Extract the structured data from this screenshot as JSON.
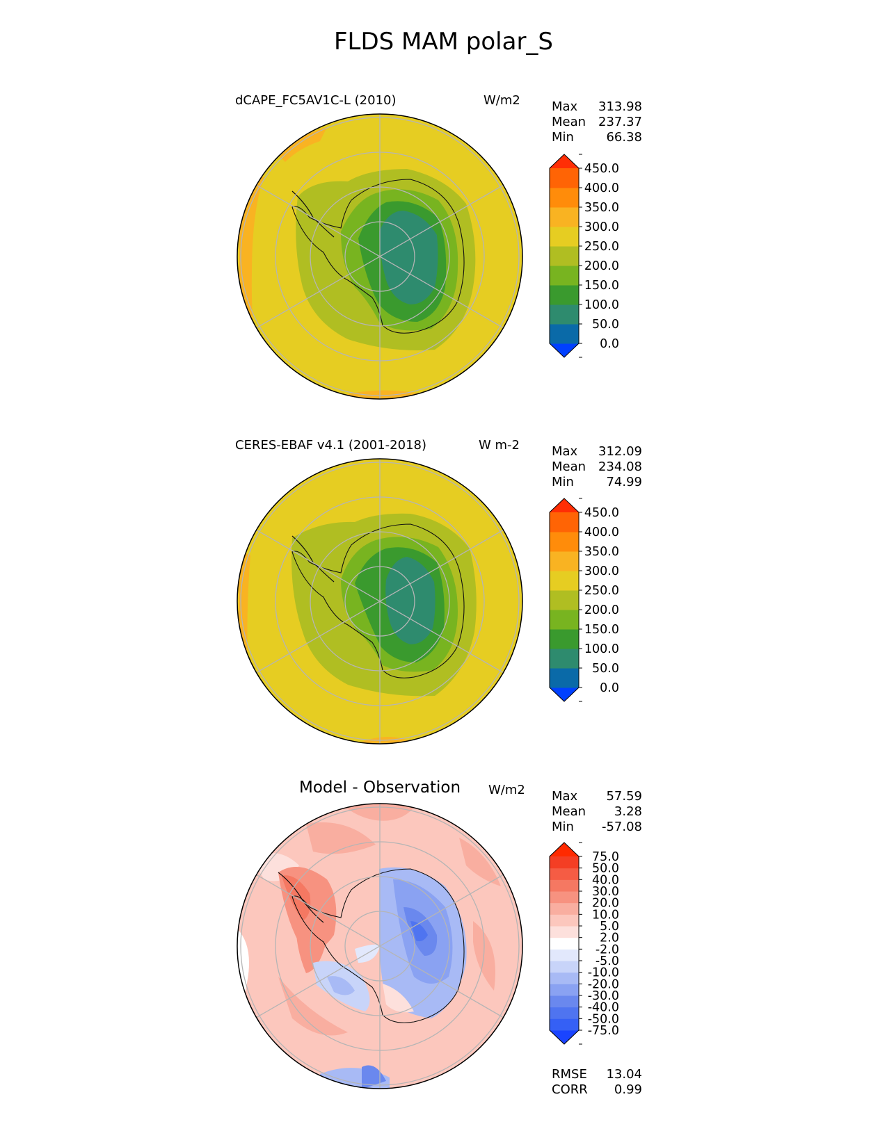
{
  "figure_title": "FLDS MAM polar_S",
  "panels": [
    {
      "title": "dCAPE_FC5AV1C-L (2010)",
      "units": "W/m2",
      "stats": [
        {
          "label": "Max",
          "value": "313.98"
        },
        {
          "label": "Mean",
          "value": "237.37"
        },
        {
          "label": "Min",
          "value": "66.38"
        }
      ],
      "colorbar": {
        "levels": [
          "0.0",
          "50.0",
          "100.0",
          "150.0",
          "200.0",
          "250.0",
          "300.0",
          "350.0",
          "400.0",
          "450.0"
        ],
        "colors": [
          "#0040ff",
          "#0a6aa8",
          "#2e8b6e",
          "#3a9a2e",
          "#78b420",
          "#b0be22",
          "#e6cd22",
          "#f9b322",
          "#ff8c0a",
          "#ff6405",
          "#ff2e05"
        ]
      }
    },
    {
      "title": "CERES-EBAF v4.1 (2001-2018)",
      "units": "W m-2",
      "stats": [
        {
          "label": "Max",
          "value": "312.09"
        },
        {
          "label": "Mean",
          "value": "234.08"
        },
        {
          "label": "Min",
          "value": "74.99"
        }
      ],
      "colorbar": {
        "levels": [
          "0.0",
          "50.0",
          "100.0",
          "150.0",
          "200.0",
          "250.0",
          "300.0",
          "350.0",
          "400.0",
          "450.0"
        ],
        "colors": [
          "#0040ff",
          "#0a6aa8",
          "#2e8b6e",
          "#3a9a2e",
          "#78b420",
          "#b0be22",
          "#e6cd22",
          "#f9b322",
          "#ff8c0a",
          "#ff6405",
          "#ff2e05"
        ]
      }
    },
    {
      "title": "Model - Observation",
      "units": "W/m2",
      "stats": [
        {
          "label": "Max",
          "value": "57.59"
        },
        {
          "label": "Mean",
          "value": "3.28"
        },
        {
          "label": "Min",
          "value": "-57.08"
        }
      ],
      "colorbar": {
        "levels": [
          "-75.0",
          "-50.0",
          "-40.0",
          "-30.0",
          "-20.0",
          "-10.0",
          "-5.0",
          "-2.0",
          "2.0",
          "5.0",
          "10.0",
          "20.0",
          "30.0",
          "40.0",
          "50.0",
          "75.0"
        ],
        "colors": [
          "#1a44ff",
          "#3560f5",
          "#4f74f0",
          "#6a88ee",
          "#8aa2f2",
          "#a8baf5",
          "#c8d4f9",
          "#e2e8fc",
          "#ffffff",
          "#fde0dc",
          "#fcc7bd",
          "#f9aea0",
          "#f79280",
          "#f57862",
          "#f55c44",
          "#f43e24",
          "#ff2a00"
        ]
      },
      "metrics": [
        {
          "label": "RMSE",
          "value": "13.04"
        },
        {
          "label": "CORR",
          "value": "0.99"
        }
      ]
    }
  ]
}
